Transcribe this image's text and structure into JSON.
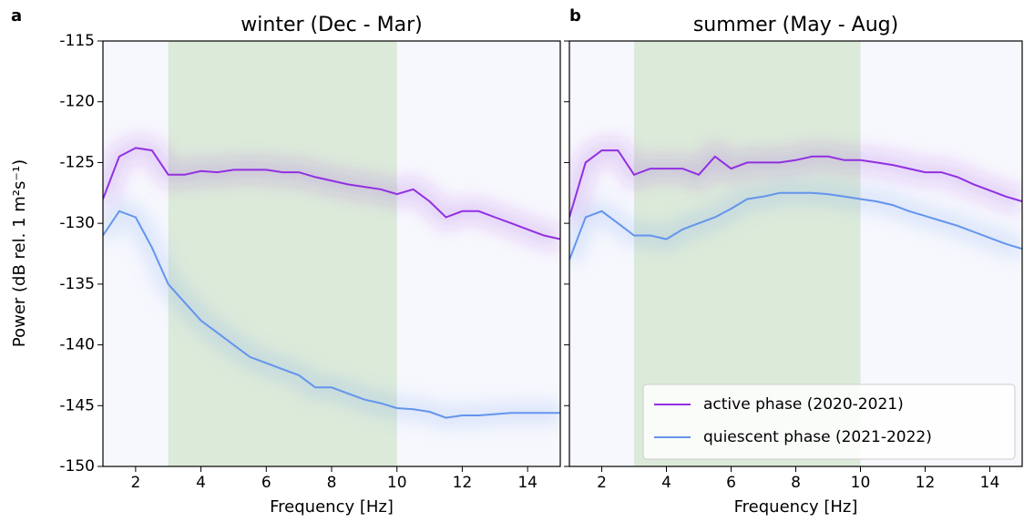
{
  "chart_data": [
    {
      "type": "line",
      "letter": "a",
      "title": "winter (Dec - Mar)",
      "x_label": "Frequency [Hz]",
      "y_label": "Power (dB rel. 1 m²s⁻¹)",
      "xlim": [
        1,
        15
      ],
      "ylim": [
        -150,
        -115
      ],
      "xticks": [
        2,
        4,
        6,
        8,
        10,
        12,
        14
      ],
      "yticks": [
        -150,
        -145,
        -140,
        -135,
        -130,
        -125,
        -120,
        -115
      ],
      "span": [
        3,
        10
      ],
      "span_color": "#d7e8d3",
      "x": [
        1,
        1.5,
        2,
        2.5,
        3,
        3.5,
        4,
        4.5,
        5,
        5.5,
        6,
        6.5,
        7,
        7.5,
        8,
        8.5,
        9,
        9.5,
        10,
        10.5,
        11,
        11.5,
        12,
        12.5,
        13,
        13.5,
        14,
        14.5,
        15
      ],
      "series": [
        {
          "name": "active phase (2020-2021)",
          "color": "#9130e0",
          "values": [
            -128,
            -124.5,
            -123.8,
            -124,
            -126,
            -126,
            -125.7,
            -125.8,
            -125.6,
            -125.6,
            -125.6,
            -125.8,
            -125.8,
            -126.2,
            -126.5,
            -126.8,
            -127,
            -127.2,
            -127.6,
            -127.2,
            -128.2,
            -129.5,
            -129,
            -129,
            -129.5,
            -130,
            -130.5,
            -131,
            -131.3
          ]
        },
        {
          "name": "quiescent phase (2021-2022)",
          "color": "#6495ed",
          "values": [
            -131,
            -129,
            -129.5,
            -132,
            -135,
            -136.5,
            -138,
            -139,
            -140,
            -141,
            -141.5,
            -142,
            -142.5,
            -143.5,
            -143.5,
            -144,
            -144.5,
            -144.8,
            -145.2,
            -145.3,
            -145.5,
            -146,
            -145.8,
            -145.8,
            -145.7,
            -145.6,
            -145.6,
            -145.6,
            -145.6
          ]
        }
      ]
    },
    {
      "type": "line",
      "letter": "b",
      "title": "summer (May - Aug)",
      "x_label": "Frequency [Hz]",
      "xlim": [
        1,
        15
      ],
      "ylim": [
        -150,
        -115
      ],
      "xticks": [
        2,
        4,
        6,
        8,
        10,
        12,
        14
      ],
      "yticks": [
        -150,
        -145,
        -140,
        -135,
        -130,
        -125,
        -120,
        -115
      ],
      "span": [
        3,
        10
      ],
      "span_color": "#d7e8d3",
      "legend": "lower right",
      "x": [
        1,
        1.5,
        2,
        2.5,
        3,
        3.5,
        4,
        4.5,
        5,
        5.5,
        6,
        6.5,
        7,
        7.5,
        8,
        8.5,
        9,
        9.5,
        10,
        10.5,
        11,
        11.5,
        12,
        12.5,
        13,
        13.5,
        14,
        14.5,
        15
      ],
      "series": [
        {
          "name": "active phase (2020-2021)",
          "color": "#9130e0",
          "values": [
            -129.5,
            -125,
            -124,
            -124,
            -126,
            -125.5,
            -125.5,
            -125.5,
            -126,
            -124.5,
            -125.5,
            -125,
            -125,
            -125,
            -124.8,
            -124.5,
            -124.5,
            -124.8,
            -124.8,
            -125,
            -125.2,
            -125.5,
            -125.8,
            -125.8,
            -126.2,
            -126.8,
            -127.3,
            -127.8,
            -128.2
          ]
        },
        {
          "name": "quiescent phase (2021-2022)",
          "color": "#6495ed",
          "values": [
            -133,
            -129.5,
            -129,
            -130,
            -131,
            -131,
            -131.3,
            -130.5,
            -130,
            -129.5,
            -128.8,
            -128,
            -127.8,
            -127.5,
            -127.5,
            -127.5,
            -127.6,
            -127.8,
            -128,
            -128.2,
            -128.5,
            -129,
            -129.4,
            -129.8,
            -130.2,
            -130.7,
            -131.2,
            -131.7,
            -132.1
          ]
        }
      ]
    }
  ]
}
